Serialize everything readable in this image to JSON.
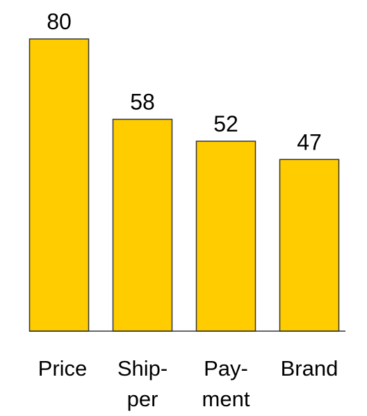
{
  "chart_data": {
    "type": "bar",
    "categories": [
      [
        "Price"
      ],
      [
        "Ship-",
        "per"
      ],
      [
        "Pay-",
        "ment"
      ],
      [
        "Brand"
      ]
    ],
    "values": [
      80,
      58,
      52,
      47
    ],
    "color": "#ffcc00"
  }
}
